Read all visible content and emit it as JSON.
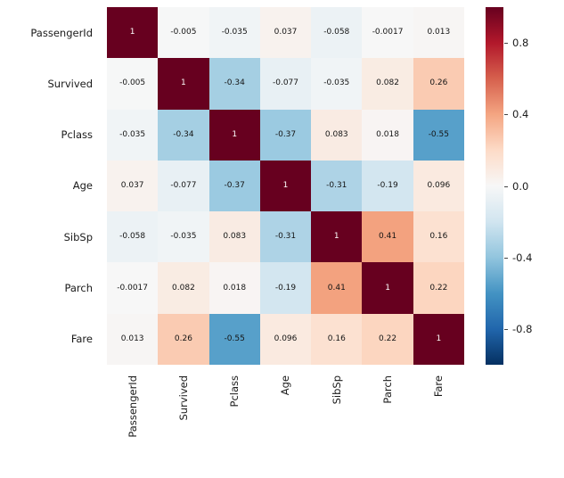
{
  "figure": {
    "background": "#ffffff",
    "text_color": "#1a1a1a"
  },
  "chart_data": {
    "type": "heatmap",
    "title": "",
    "xlabel": "",
    "ylabel": "",
    "categories": [
      "PassengerId",
      "Survived",
      "Pclass",
      "Age",
      "SibSp",
      "Parch",
      "Fare"
    ],
    "matrix": [
      [
        1,
        -0.005,
        -0.035,
        0.037,
        -0.058,
        -0.0017,
        0.013
      ],
      [
        -0.005,
        1,
        -0.34,
        -0.077,
        -0.035,
        0.082,
        0.26
      ],
      [
        -0.035,
        -0.34,
        1,
        -0.37,
        0.083,
        0.018,
        -0.55
      ],
      [
        0.037,
        -0.077,
        -0.37,
        1,
        -0.31,
        -0.19,
        0.096
      ],
      [
        -0.058,
        -0.035,
        0.083,
        -0.31,
        1,
        0.41,
        0.16
      ],
      [
        -0.0017,
        0.082,
        0.018,
        -0.19,
        0.41,
        1,
        0.22
      ],
      [
        0.013,
        0.26,
        -0.55,
        0.096,
        0.16,
        0.22,
        1
      ]
    ],
    "cell_labels": [
      [
        "1",
        "-0.005",
        "-0.035",
        "0.037",
        "-0.058",
        "-0.0017",
        "0.013"
      ],
      [
        "-0.005",
        "1",
        "-0.34",
        "-0.077",
        "-0.035",
        "0.082",
        "0.26"
      ],
      [
        "-0.035",
        "-0.34",
        "1",
        "-0.37",
        "0.083",
        "0.018",
        "-0.55"
      ],
      [
        "0.037",
        "-0.077",
        "-0.37",
        "1",
        "-0.31",
        "-0.19",
        "0.096"
      ],
      [
        "-0.058",
        "-0.035",
        "0.083",
        "-0.31",
        "1",
        "0.41",
        "0.16"
      ],
      [
        "-0.0017",
        "0.082",
        "0.018",
        "-0.19",
        "0.41",
        "1",
        "0.22"
      ],
      [
        "0.013",
        "0.26",
        "-0.55",
        "0.096",
        "0.16",
        "0.22",
        "1"
      ]
    ],
    "vmin": -1,
    "vmax": 1,
    "colormap": "RdBu_r",
    "colormap_stops": [
      {
        "v": -1.0,
        "c": "#053061"
      },
      {
        "v": -0.8,
        "c": "#2166ac"
      },
      {
        "v": -0.6,
        "c": "#4393c3"
      },
      {
        "v": -0.4,
        "c": "#92c5de"
      },
      {
        "v": -0.2,
        "c": "#d1e5f0"
      },
      {
        "v": 0.0,
        "c": "#f7f7f7"
      },
      {
        "v": 0.2,
        "c": "#fddbc7"
      },
      {
        "v": 0.4,
        "c": "#f4a582"
      },
      {
        "v": 0.6,
        "c": "#d6604d"
      },
      {
        "v": 0.8,
        "c": "#b2182b"
      },
      {
        "v": 1.0,
        "c": "#67001f"
      }
    ],
    "legend_position": "right",
    "grid": false,
    "colorbar": {
      "ticks": [
        0.8,
        0.4,
        0.0,
        -0.4,
        -0.8
      ],
      "tick_labels": [
        "0.8",
        "0.4",
        "0.0",
        "-0.4",
        "-0.8"
      ]
    }
  }
}
